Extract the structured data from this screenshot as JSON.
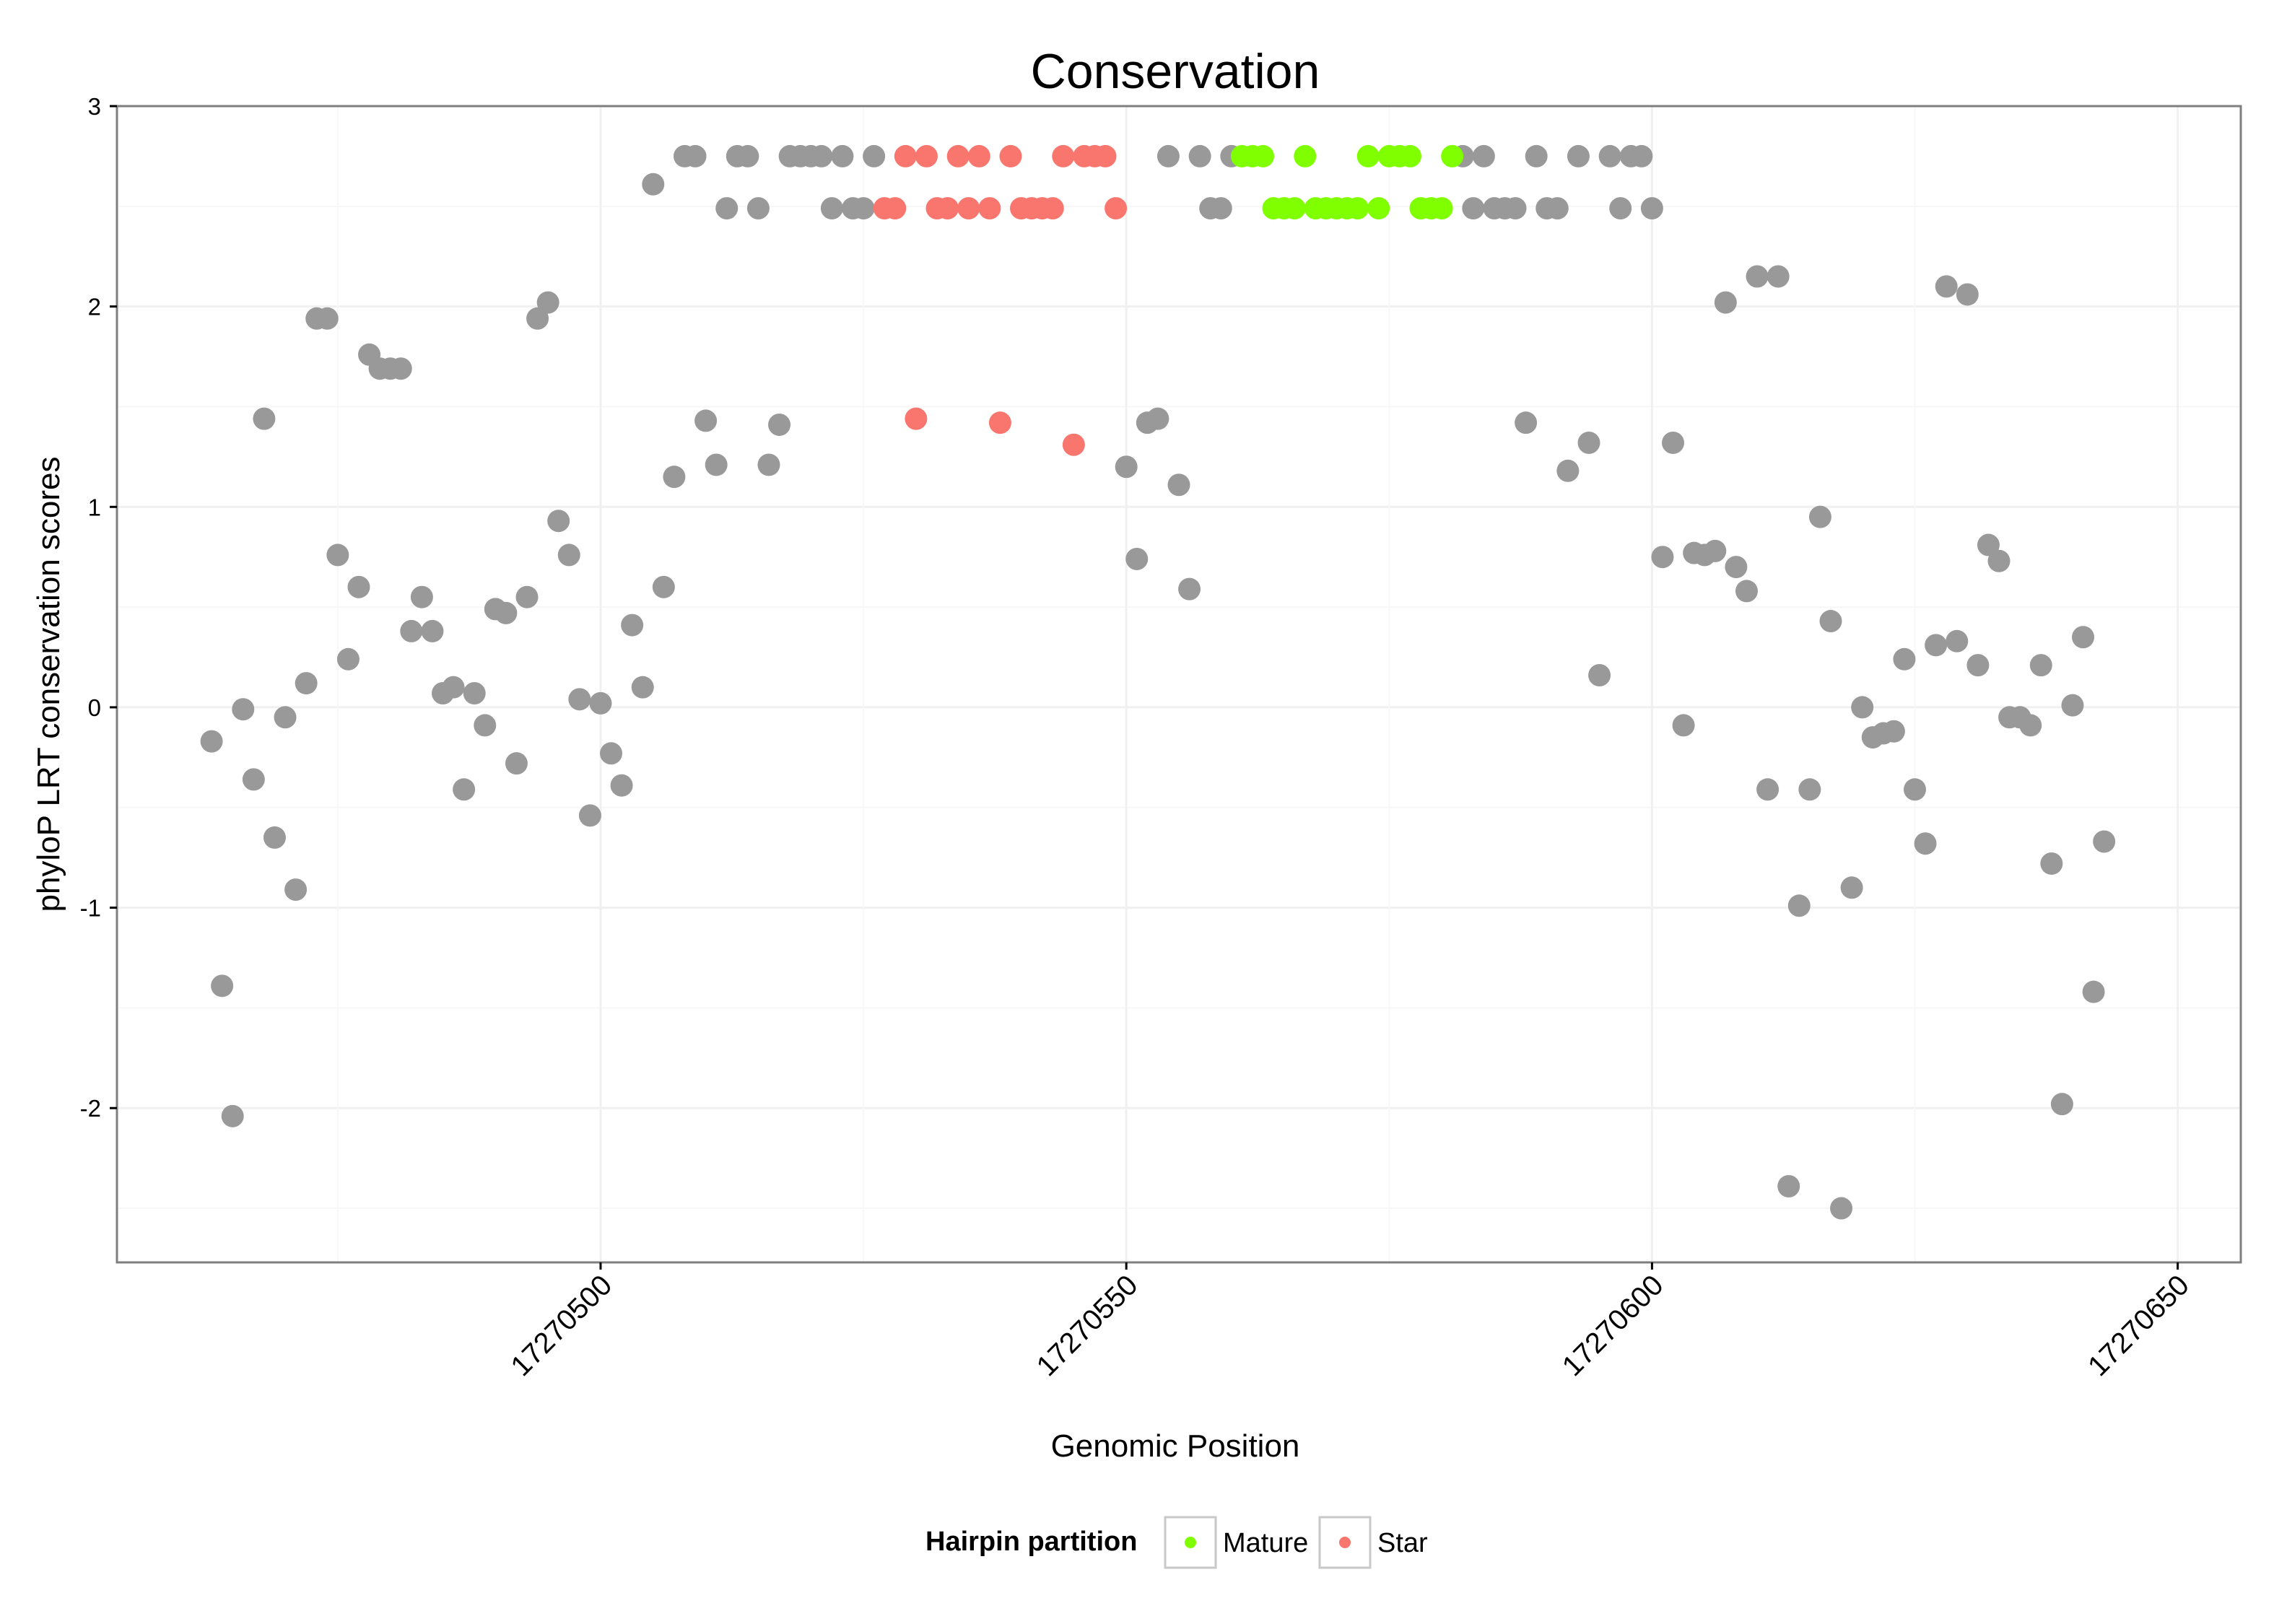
{
  "chart_data": {
    "type": "scatter",
    "title": "Conservation",
    "xlabel": "Genomic Position",
    "ylabel": "phyloP LRT conservation scores",
    "xlim": [
      17270454,
      17270656
    ],
    "ylim": [
      -2.77,
      3.0
    ],
    "x_ticks": [
      17270500,
      17270550,
      17270600,
      17270650
    ],
    "x_tick_labels": [
      "17270500",
      "17270550",
      "17270600",
      "17270650"
    ],
    "y_ticks": [
      -2,
      -1,
      0,
      1,
      2,
      3
    ],
    "y_tick_labels": [
      "-2",
      "-1",
      "0",
      "1",
      "2",
      "3"
    ],
    "grid": true,
    "colors": {
      "other": "#999999",
      "Mature": "#7FFF00",
      "Star": "#F8766D"
    },
    "legend": {
      "title": "Hairpin partition",
      "position": "bottom",
      "entries": [
        {
          "label": "Mature",
          "color": "#7FFF00"
        },
        {
          "label": "Star",
          "color": "#F8766D"
        }
      ]
    },
    "series": [
      {
        "name": "Other",
        "points": [
          [
            17270463,
            -0.17
          ],
          [
            17270464,
            -1.39
          ],
          [
            17270465,
            -2.04
          ],
          [
            17270466,
            -0.01
          ],
          [
            17270467,
            -0.36
          ],
          [
            17270468,
            1.44
          ],
          [
            17270469,
            -0.65
          ],
          [
            17270470,
            -0.05
          ],
          [
            17270471,
            -0.91
          ],
          [
            17270472,
            0.12
          ],
          [
            17270473,
            1.94
          ],
          [
            17270474,
            1.94
          ],
          [
            17270475,
            0.76
          ],
          [
            17270476,
            0.24
          ],
          [
            17270477,
            0.6
          ],
          [
            17270478,
            1.76
          ],
          [
            17270479,
            1.69
          ],
          [
            17270480,
            1.69
          ],
          [
            17270481,
            1.69
          ],
          [
            17270482,
            0.38
          ],
          [
            17270483,
            0.55
          ],
          [
            17270484,
            0.38
          ],
          [
            17270485,
            0.07
          ],
          [
            17270486,
            0.1
          ],
          [
            17270487,
            -0.41
          ],
          [
            17270488,
            0.07
          ],
          [
            17270489,
            -0.09
          ],
          [
            17270490,
            0.49
          ],
          [
            17270491,
            0.47
          ],
          [
            17270492,
            -0.28
          ],
          [
            17270493,
            0.55
          ],
          [
            17270494,
            1.94
          ],
          [
            17270495,
            2.02
          ],
          [
            17270496,
            0.93
          ],
          [
            17270497,
            0.76
          ],
          [
            17270498,
            0.04
          ],
          [
            17270499,
            -0.54
          ],
          [
            17270500,
            0.02
          ],
          [
            17270501,
            -0.23
          ],
          [
            17270502,
            -0.39
          ],
          [
            17270503,
            0.41
          ],
          [
            17270504,
            0.1
          ],
          [
            17270505,
            2.61
          ],
          [
            17270506,
            0.6
          ],
          [
            17270507,
            1.15
          ],
          [
            17270508,
            2.75
          ],
          [
            17270509,
            2.75
          ],
          [
            17270510,
            1.43
          ],
          [
            17270511,
            1.21
          ],
          [
            17270512,
            2.49
          ],
          [
            17270513,
            2.75
          ],
          [
            17270514,
            2.75
          ],
          [
            17270515,
            2.49
          ],
          [
            17270516,
            1.21
          ],
          [
            17270517,
            1.41
          ],
          [
            17270518,
            2.75
          ],
          [
            17270519,
            2.75
          ],
          [
            17270520,
            2.75
          ],
          [
            17270521,
            2.75
          ],
          [
            17270522,
            2.49
          ],
          [
            17270523,
            2.75
          ],
          [
            17270524,
            2.49
          ],
          [
            17270525,
            2.49
          ],
          [
            17270526,
            2.75
          ],
          [
            17270550,
            1.2
          ],
          [
            17270551,
            0.74
          ],
          [
            17270552,
            1.42
          ],
          [
            17270553,
            1.44
          ],
          [
            17270554,
            2.75
          ],
          [
            17270555,
            1.11
          ],
          [
            17270556,
            0.59
          ],
          [
            17270557,
            2.75
          ],
          [
            17270558,
            2.49
          ],
          [
            17270559,
            2.49
          ],
          [
            17270560,
            2.75
          ],
          [
            17270582,
            2.75
          ],
          [
            17270583,
            2.49
          ],
          [
            17270584,
            2.75
          ],
          [
            17270585,
            2.49
          ],
          [
            17270586,
            2.49
          ],
          [
            17270587,
            2.49
          ],
          [
            17270588,
            1.42
          ],
          [
            17270589,
            2.75
          ],
          [
            17270590,
            2.49
          ],
          [
            17270591,
            2.49
          ],
          [
            17270592,
            1.18
          ],
          [
            17270593,
            2.75
          ],
          [
            17270594,
            1.32
          ],
          [
            17270595,
            0.16
          ],
          [
            17270596,
            2.75
          ],
          [
            17270597,
            2.49
          ],
          [
            17270598,
            2.75
          ],
          [
            17270599,
            2.75
          ],
          [
            17270600,
            2.49
          ],
          [
            17270601,
            0.75
          ],
          [
            17270602,
            1.32
          ],
          [
            17270603,
            -0.09
          ],
          [
            17270604,
            0.77
          ],
          [
            17270605,
            0.76
          ],
          [
            17270606,
            0.78
          ],
          [
            17270607,
            2.02
          ],
          [
            17270608,
            0.7
          ],
          [
            17270609,
            0.58
          ],
          [
            17270610,
            2.15
          ],
          [
            17270611,
            -0.41
          ],
          [
            17270612,
            2.15
          ],
          [
            17270613,
            -2.39
          ],
          [
            17270614,
            -0.99
          ],
          [
            17270615,
            -0.41
          ],
          [
            17270616,
            0.95
          ],
          [
            17270617,
            0.43
          ],
          [
            17270618,
            -2.5
          ],
          [
            17270619,
            -0.9
          ],
          [
            17270620,
            0.0
          ],
          [
            17270621,
            -0.15
          ],
          [
            17270622,
            -0.13
          ],
          [
            17270623,
            -0.12
          ],
          [
            17270624,
            0.24
          ],
          [
            17270625,
            -0.41
          ],
          [
            17270626,
            -0.68
          ],
          [
            17270627,
            0.31
          ],
          [
            17270628,
            2.1
          ],
          [
            17270629,
            0.33
          ],
          [
            17270630,
            2.06
          ],
          [
            17270631,
            0.21
          ],
          [
            17270632,
            0.81
          ],
          [
            17270633,
            0.73
          ],
          [
            17270634,
            -0.05
          ],
          [
            17270635,
            -0.05
          ],
          [
            17270636,
            -0.09
          ],
          [
            17270637,
            0.21
          ],
          [
            17270638,
            -0.78
          ],
          [
            17270639,
            -1.98
          ],
          [
            17270640,
            0.01
          ],
          [
            17270641,
            0.35
          ],
          [
            17270642,
            -1.42
          ],
          [
            17270643,
            -0.67
          ]
        ]
      },
      {
        "name": "Star",
        "points": [
          [
            17270527,
            2.49
          ],
          [
            17270528,
            2.49
          ],
          [
            17270529,
            2.75
          ],
          [
            17270530,
            1.44
          ],
          [
            17270531,
            2.75
          ],
          [
            17270532,
            2.49
          ],
          [
            17270533,
            2.49
          ],
          [
            17270534,
            2.75
          ],
          [
            17270535,
            2.49
          ],
          [
            17270536,
            2.75
          ],
          [
            17270537,
            2.49
          ],
          [
            17270538,
            1.42
          ],
          [
            17270539,
            2.75
          ],
          [
            17270540,
            2.49
          ],
          [
            17270541,
            2.49
          ],
          [
            17270542,
            2.49
          ],
          [
            17270543,
            2.49
          ],
          [
            17270544,
            2.75
          ],
          [
            17270545,
            1.31
          ],
          [
            17270546,
            2.75
          ],
          [
            17270547,
            2.75
          ],
          [
            17270548,
            2.75
          ],
          [
            17270549,
            2.49
          ]
        ]
      },
      {
        "name": "Mature",
        "points": [
          [
            17270561,
            2.75
          ],
          [
            17270562,
            2.75
          ],
          [
            17270563,
            2.75
          ],
          [
            17270564,
            2.49
          ],
          [
            17270565,
            2.49
          ],
          [
            17270566,
            2.49
          ],
          [
            17270567,
            2.75
          ],
          [
            17270568,
            2.49
          ],
          [
            17270569,
            2.49
          ],
          [
            17270570,
            2.49
          ],
          [
            17270571,
            2.49
          ],
          [
            17270572,
            2.49
          ],
          [
            17270573,
            2.75
          ],
          [
            17270574,
            2.49
          ],
          [
            17270575,
            2.75
          ],
          [
            17270576,
            2.75
          ],
          [
            17270577,
            2.75
          ],
          [
            17270578,
            2.49
          ],
          [
            17270579,
            2.49
          ],
          [
            17270580,
            2.49
          ],
          [
            17270581,
            2.75
          ]
        ]
      }
    ]
  }
}
